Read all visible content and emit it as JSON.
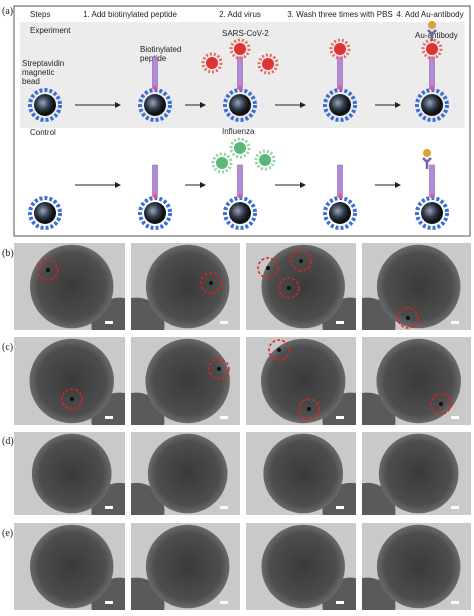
{
  "figure": {
    "panel_a": {
      "label": "(a)",
      "steps_title": "Steps",
      "steps": [
        "1. Add biotinylated peptide",
        "2. Add virus",
        "3. Wash three times with PBS",
        "4. Add Au-antibody"
      ],
      "experiment": {
        "label": "Experiment",
        "bead": [
          "Streptavidin",
          "magnetic",
          "bead"
        ],
        "peptide": [
          "Biotinylated",
          "peptide"
        ],
        "virus": "SARS-CoV-2",
        "antibody": "Au-antibody"
      },
      "control": {
        "label": "Control",
        "virus": "Influenza"
      }
    },
    "panels": [
      {
        "label": "(b)"
      },
      {
        "label": "(c)"
      },
      {
        "label": "(d)"
      },
      {
        "label": "(e)"
      }
    ]
  }
}
